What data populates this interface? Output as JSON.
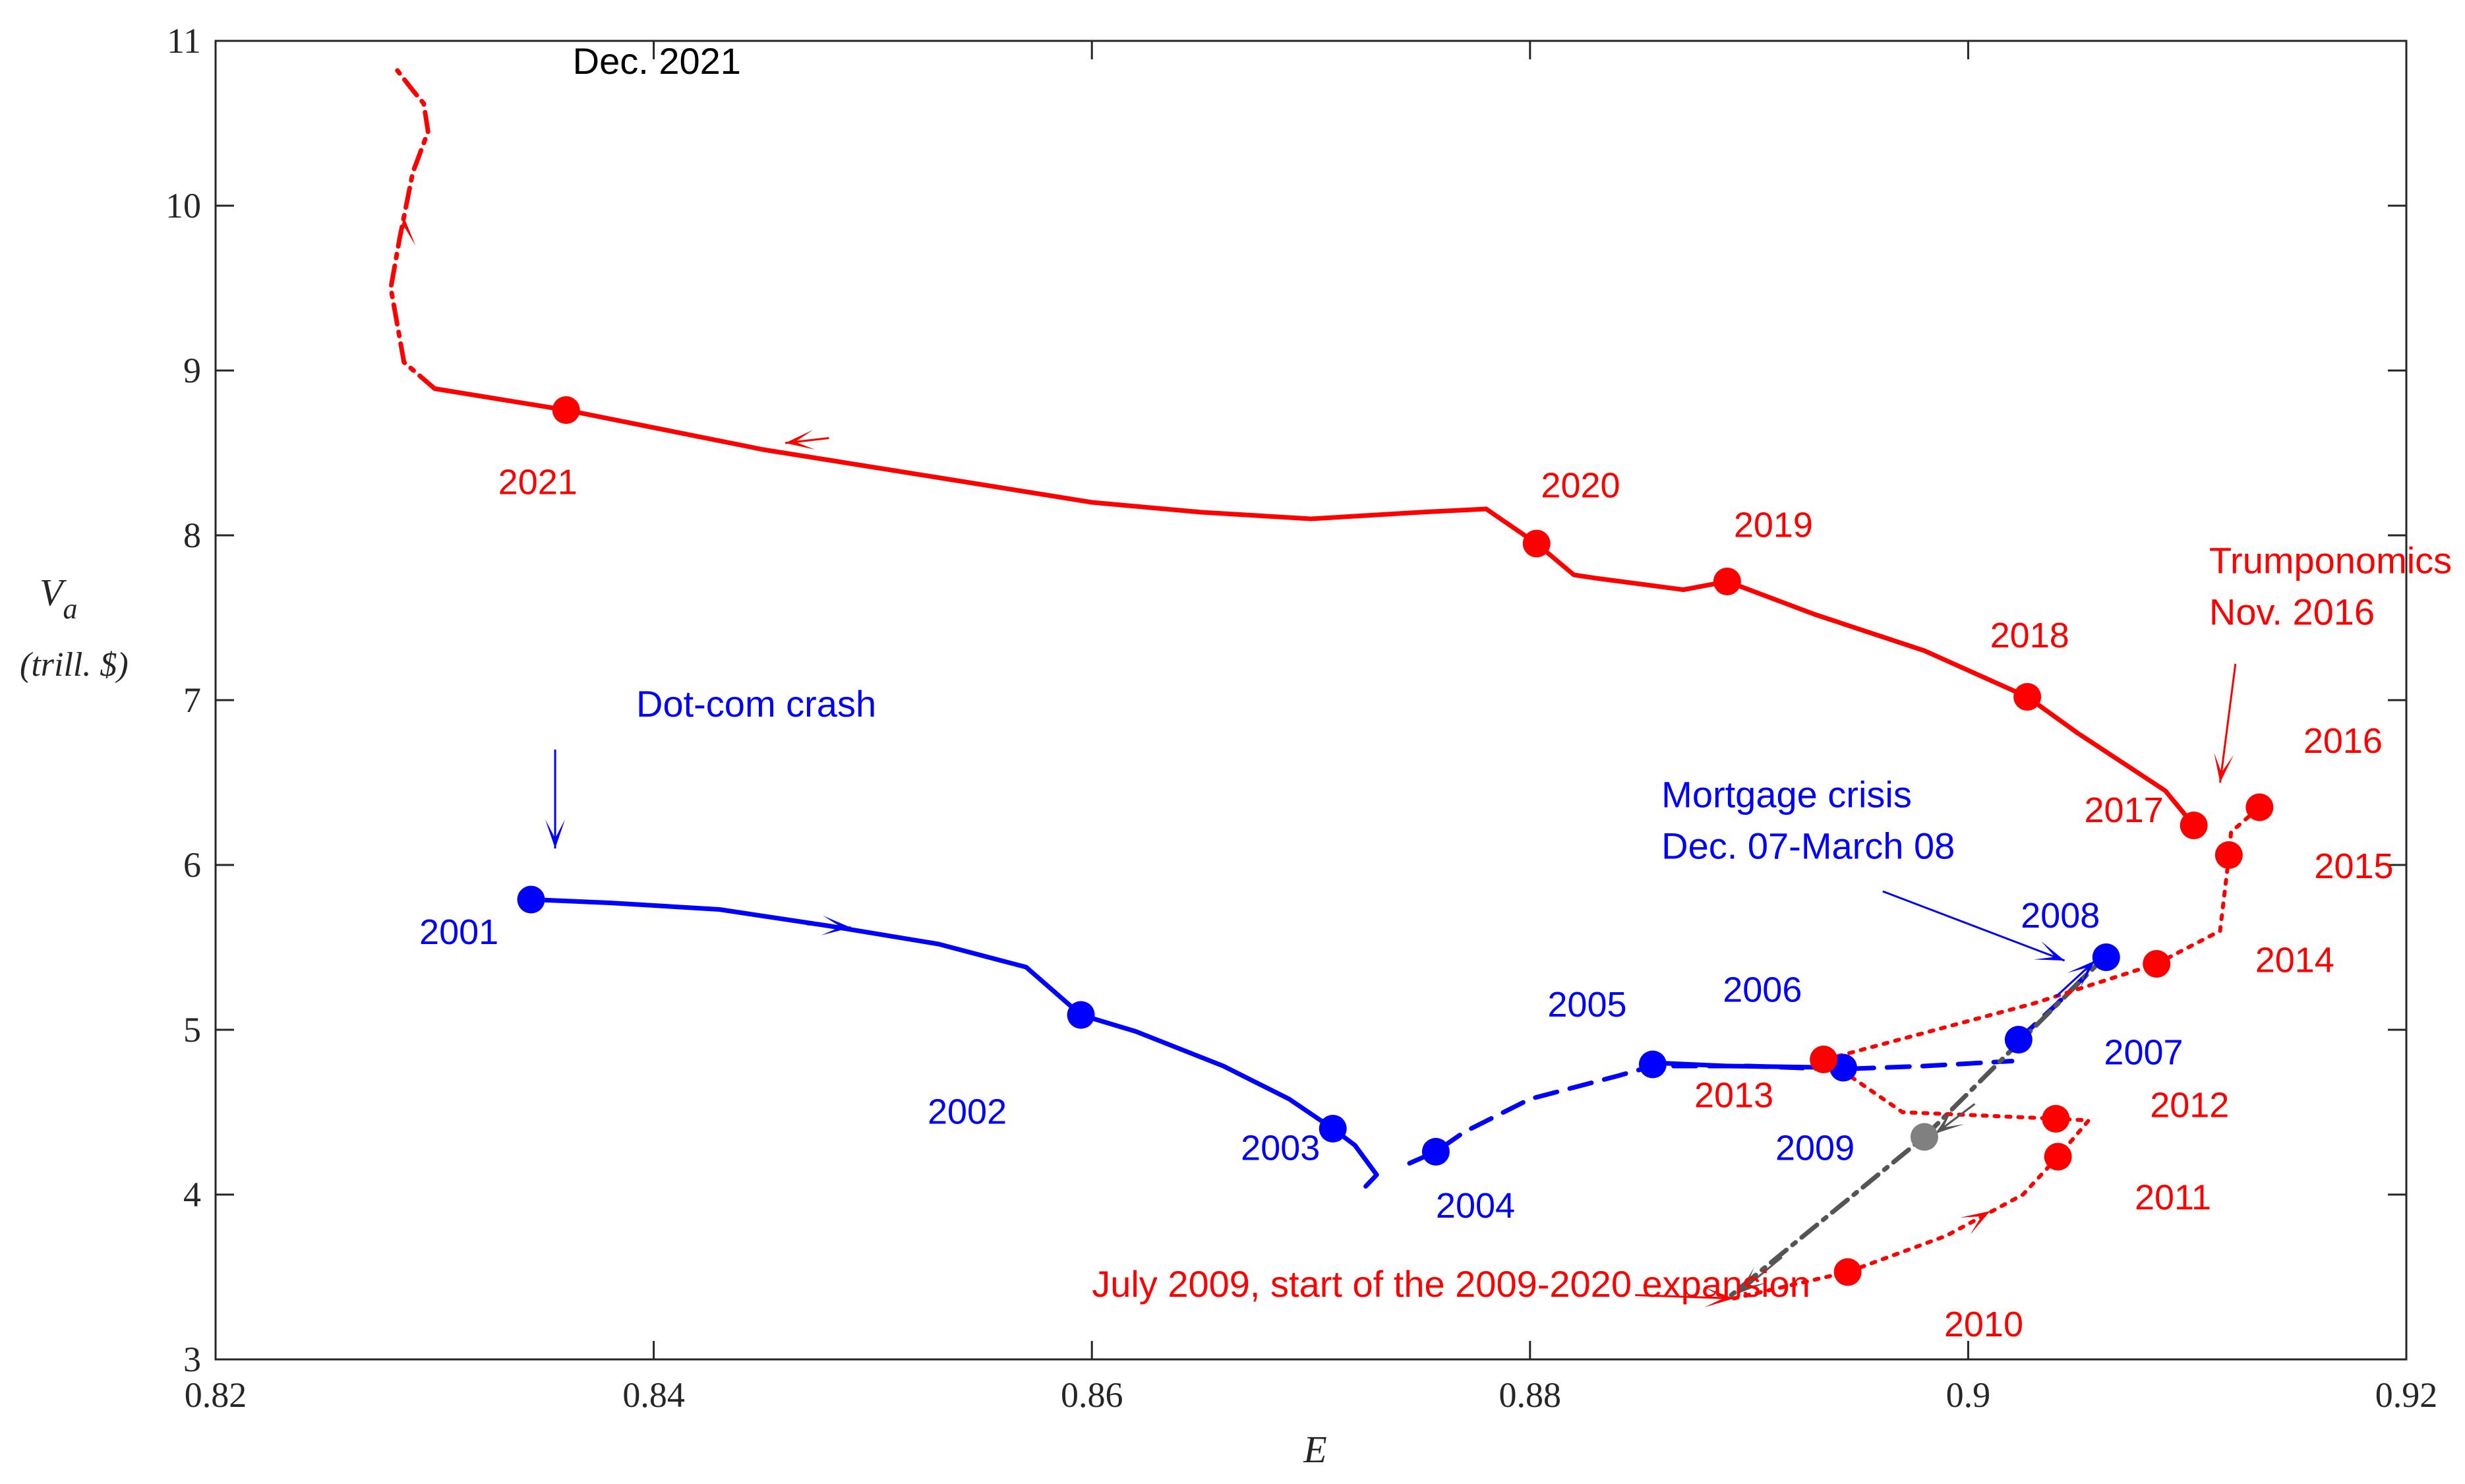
{
  "chart_data": {
    "type": "line",
    "xlabel": "E",
    "ylabel": {
      "main": "V",
      "sub": "a",
      "unit": "(trill. $)"
    },
    "xlim": [
      0.82,
      0.92
    ],
    "ylim": [
      3,
      11
    ],
    "x_ticks": [
      {
        "value": 0.82,
        "label": "0.82"
      },
      {
        "value": 0.84,
        "label": "0.84"
      },
      {
        "value": 0.86,
        "label": "0.86"
      },
      {
        "value": 0.88,
        "label": "0.88"
      },
      {
        "value": 0.9,
        "label": "0.9"
      },
      {
        "value": 0.92,
        "label": "0.92"
      }
    ],
    "y_ticks": [
      {
        "value": 3,
        "label": "3"
      },
      {
        "value": 4,
        "label": "4"
      },
      {
        "value": 5,
        "label": "5"
      },
      {
        "value": 6,
        "label": "6"
      },
      {
        "value": 7,
        "label": "7"
      },
      {
        "value": 8,
        "label": "8"
      },
      {
        "value": 9,
        "label": "9"
      },
      {
        "value": 10,
        "label": "10"
      },
      {
        "value": 11,
        "label": "11"
      }
    ],
    "grid": false,
    "colors": {
      "red": "#ff0000",
      "blue": "#0000ff",
      "gray": "#555555",
      "gray_point": "#808080",
      "axis": "#262626"
    },
    "series": [
      {
        "name": "blue-2001-2004",
        "color": "#0000ff",
        "style": "solid",
        "points": [
          [
            0.8345,
            5.79
          ],
          [
            0.838,
            5.77
          ],
          [
            0.843,
            5.73
          ],
          [
            0.848,
            5.63
          ],
          [
            0.853,
            5.52
          ],
          [
            0.857,
            5.38
          ],
          [
            0.8595,
            5.09
          ],
          [
            0.862,
            4.99
          ],
          [
            0.866,
            4.78
          ],
          [
            0.869,
            4.58
          ],
          [
            0.871,
            4.4
          ],
          [
            0.872,
            4.3
          ],
          [
            0.873,
            4.12
          ],
          [
            0.8725,
            4.05
          ]
        ]
      },
      {
        "name": "blue-2004-2007",
        "color": "#0000ff",
        "style": "dashed",
        "points": [
          [
            0.8745,
            4.19
          ],
          [
            0.8757,
            4.26
          ],
          [
            0.877,
            4.38
          ],
          [
            0.88,
            4.58
          ],
          [
            0.884,
            4.72
          ],
          [
            0.8856,
            4.78
          ],
          [
            0.89,
            4.78
          ],
          [
            0.894,
            4.76
          ],
          [
            0.898,
            4.78
          ],
          [
            0.902,
            4.81
          ]
        ]
      },
      {
        "name": "blue-2006-solid",
        "color": "#0000ff",
        "style": "solid",
        "points": [
          [
            0.8856,
            4.8
          ],
          [
            0.889,
            4.78
          ],
          [
            0.8943,
            4.77
          ]
        ]
      },
      {
        "name": "blue-2007-2008",
        "color": "#0000ff",
        "style": "dashed",
        "points": [
          [
            0.9023,
            4.94
          ],
          [
            0.904,
            5.15
          ],
          [
            0.9063,
            5.45
          ]
        ]
      },
      {
        "name": "gray-crash",
        "color": "#555555",
        "style": "dashdot",
        "points": [
          [
            0.9063,
            5.45
          ],
          [
            0.898,
            4.35
          ],
          [
            0.889,
            3.37
          ]
        ]
      },
      {
        "name": "red-2009-2016",
        "color": "#ff0000",
        "style": "dotted",
        "points": [
          [
            0.8893,
            3.37
          ],
          [
            0.8945,
            3.53
          ],
          [
            0.899,
            3.75
          ],
          [
            0.9025,
            4.0
          ],
          [
            0.9041,
            4.23
          ],
          [
            0.9055,
            4.45
          ],
          [
            0.9041,
            4.46
          ],
          [
            0.897,
            4.5
          ],
          [
            0.8935,
            4.82
          ],
          [
            0.903,
            5.16
          ],
          [
            0.9086,
            5.4
          ],
          [
            0.9115,
            5.6
          ],
          [
            0.9119,
            6.05
          ],
          [
            0.912,
            6.2
          ],
          [
            0.9133,
            6.35
          ]
        ]
      },
      {
        "name": "red-2017-2021",
        "color": "#ff0000",
        "style": "solid",
        "points": [
          [
            0.9103,
            6.24
          ],
          [
            0.909,
            6.45
          ],
          [
            0.905,
            6.8
          ],
          [
            0.9027,
            7.02
          ],
          [
            0.898,
            7.3
          ],
          [
            0.893,
            7.52
          ],
          [
            0.889,
            7.72
          ],
          [
            0.887,
            7.67
          ],
          [
            0.883,
            7.74
          ],
          [
            0.882,
            7.76
          ],
          [
            0.8803,
            7.95
          ],
          [
            0.878,
            8.16
          ],
          [
            0.875,
            8.14
          ],
          [
            0.87,
            8.1
          ],
          [
            0.865,
            8.14
          ],
          [
            0.86,
            8.2
          ],
          [
            0.853,
            8.35
          ],
          [
            0.845,
            8.52
          ],
          [
            0.836,
            8.76
          ],
          [
            0.83,
            8.89
          ]
        ]
      },
      {
        "name": "red-2021-dec",
        "color": "#ff0000",
        "style": "dashdot",
        "points": [
          [
            0.83,
            8.89
          ],
          [
            0.8286,
            9.05
          ],
          [
            0.828,
            9.5
          ],
          [
            0.8284,
            9.8
          ],
          [
            0.829,
            10.2
          ],
          [
            0.8297,
            10.45
          ],
          [
            0.8295,
            10.62
          ],
          [
            0.829,
            10.7
          ],
          [
            0.8283,
            10.82
          ]
        ]
      }
    ],
    "markers": [
      {
        "label": "2001",
        "x": 0.8344,
        "y": 5.79,
        "color": "#0000ff"
      },
      {
        "label": "2002",
        "x": 0.8595,
        "y": 5.09,
        "color": "#0000ff"
      },
      {
        "label": "2003",
        "x": 0.871,
        "y": 4.4,
        "color": "#0000ff"
      },
      {
        "label": "2004",
        "x": 0.8757,
        "y": 4.26,
        "color": "#0000ff"
      },
      {
        "label": "2005",
        "x": 0.8856,
        "y": 4.79,
        "color": "#0000ff"
      },
      {
        "label": "2006",
        "x": 0.8943,
        "y": 4.77,
        "color": "#0000ff"
      },
      {
        "label": "2007",
        "x": 0.9023,
        "y": 4.94,
        "color": "#0000ff"
      },
      {
        "label": "2008",
        "x": 0.9063,
        "y": 5.44,
        "color": "#0000ff"
      },
      {
        "label": "2009",
        "x": 0.898,
        "y": 4.35,
        "color": "#808080"
      },
      {
        "label": "2010",
        "x": 0.8945,
        "y": 3.53,
        "color": "#ff0000"
      },
      {
        "label": "2011",
        "x": 0.9041,
        "y": 4.23,
        "color": "#ff0000"
      },
      {
        "label": "2012",
        "x": 0.904,
        "y": 4.46,
        "color": "#ff0000"
      },
      {
        "label": "2013",
        "x": 0.8934,
        "y": 4.82,
        "color": "#ff0000"
      },
      {
        "label": "2014",
        "x": 0.9086,
        "y": 5.4,
        "color": "#ff0000"
      },
      {
        "label": "2015",
        "x": 0.9119,
        "y": 6.06,
        "color": "#ff0000"
      },
      {
        "label": "2016",
        "x": 0.9133,
        "y": 6.35,
        "color": "#ff0000"
      },
      {
        "label": "2017",
        "x": 0.9103,
        "y": 6.24,
        "color": "#ff0000"
      },
      {
        "label": "2018",
        "x": 0.9027,
        "y": 7.02,
        "color": "#ff0000"
      },
      {
        "label": "2019",
        "x": 0.889,
        "y": 7.72,
        "color": "#ff0000"
      },
      {
        "label": "2020",
        "x": 0.8803,
        "y": 7.95,
        "color": "#ff0000"
      },
      {
        "label": "2021",
        "x": 0.836,
        "y": 8.76,
        "color": "#ff0000"
      }
    ],
    "year_labels": [
      {
        "text": "2001",
        "x": 0.8293,
        "y": 5.52,
        "color": "#0000ff"
      },
      {
        "text": "2002",
        "x": 0.8525,
        "y": 4.43,
        "color": "#0000ff"
      },
      {
        "text": "2003",
        "x": 0.8668,
        "y": 4.21,
        "color": "#0000ff"
      },
      {
        "text": "2004",
        "x": 0.8757,
        "y": 3.86,
        "color": "#0000ff"
      },
      {
        "text": "2005",
        "x": 0.8808,
        "y": 5.08,
        "color": "#0000ff"
      },
      {
        "text": "2006",
        "x": 0.8888,
        "y": 5.17,
        "color": "#0000ff"
      },
      {
        "text": "2007",
        "x": 0.9062,
        "y": 4.79,
        "color": "#0000ff"
      },
      {
        "text": "2008",
        "x": 0.9024,
        "y": 5.62,
        "color": "#0000ff"
      },
      {
        "text": "2009",
        "x": 0.8912,
        "y": 4.21,
        "color": "#0000ff"
      },
      {
        "text": "2010",
        "x": 0.8989,
        "y": 3.14,
        "color": "#ff0000"
      },
      {
        "text": "2011",
        "x": 0.9076,
        "y": 3.91,
        "color": "#ff0000"
      },
      {
        "text": "2012",
        "x": 0.9083,
        "y": 4.47,
        "color": "#ff0000"
      },
      {
        "text": "2013",
        "x": 0.8875,
        "y": 4.53,
        "color": "#ff0000"
      },
      {
        "text": "2014",
        "x": 0.9131,
        "y": 5.35,
        "color": "#ff0000"
      },
      {
        "text": "2015",
        "x": 0.9158,
        "y": 5.92,
        "color": "#ff0000"
      },
      {
        "text": "2016",
        "x": 0.9153,
        "y": 6.68,
        "color": "#ff0000"
      },
      {
        "text": "2017",
        "x": 0.9053,
        "y": 6.26,
        "color": "#ff0000"
      },
      {
        "text": "2018",
        "x": 0.901,
        "y": 7.32,
        "color": "#ff0000"
      },
      {
        "text": "2019",
        "x": 0.8893,
        "y": 7.99,
        "color": "#ff0000"
      },
      {
        "text": "2020",
        "x": 0.8805,
        "y": 8.23,
        "color": "#ff0000"
      },
      {
        "text": "2021",
        "x": 0.8329,
        "y": 8.25,
        "color": "#ff0000"
      }
    ],
    "annotations": [
      {
        "name": "dotcom-label",
        "lines": [
          "Dot-com crash"
        ],
        "x": 0.8392,
        "y": 6.9,
        "color": "#0000ff"
      },
      {
        "name": "mortgage-label",
        "lines": [
          "Mortgage crisis",
          "Dec. 07-March 08"
        ],
        "x": 0.886,
        "y": 6.35,
        "color": "#0000ff"
      },
      {
        "name": "trump-label",
        "lines": [
          "Trumponomics",
          "Nov. 2016"
        ],
        "x": 0.911,
        "y": 7.77,
        "color": "#ff0000"
      },
      {
        "name": "expansion-label",
        "lines": [
          "July 2009, start of the 2009-2020 expansion"
        ],
        "x": 0.86,
        "y": 3.38,
        "color": "#ff0000"
      },
      {
        "name": "dec2021-label",
        "lines": [
          "Dec. 2021"
        ],
        "x": 0.8363,
        "y": 10.8,
        "color": "#000000"
      }
    ],
    "arrows": [
      {
        "name": "dotcom-arrow",
        "from": [
          0.8355,
          6.7
        ],
        "to": [
          0.8355,
          6.1
        ],
        "color": "#0000ff"
      },
      {
        "name": "mortgage-arrow",
        "from": [
          0.8961,
          5.84
        ],
        "to": [
          0.9044,
          5.42
        ],
        "color": "#0000ff"
      },
      {
        "name": "trump-arrow",
        "from": [
          0.9122,
          7.22
        ],
        "to": [
          0.9115,
          6.5
        ],
        "color": "#ff0000"
      },
      {
        "name": "expansion-arrow",
        "from": [
          0.8848,
          3.39
        ],
        "to": [
          0.8893,
          3.37
        ],
        "color": "#ff0000"
      },
      {
        "name": "arrow-blue-1",
        "from": [
          0.847,
          5.64
        ],
        "to": [
          0.849,
          5.62
        ],
        "color": "#0000ff"
      },
      {
        "name": "arrow-red-2021",
        "from": [
          0.848,
          8.59
        ],
        "to": [
          0.846,
          8.56
        ],
        "color": "#ff0000"
      },
      {
        "name": "arrow-red-dec",
        "from": [
          0.8287,
          9.7
        ],
        "to": [
          0.8286,
          9.93
        ],
        "color": "#ff0000"
      },
      {
        "name": "arrow-red-2010",
        "from": [
          0.8995,
          3.78
        ],
        "to": [
          0.901,
          3.9
        ],
        "color": "#ff0000"
      },
      {
        "name": "arrow-gray-1",
        "from": [
          0.9003,
          4.55
        ],
        "to": [
          0.8985,
          4.37
        ],
        "color": "#555555"
      },
      {
        "name": "arrow-gray-2",
        "from": [
          0.8915,
          3.62
        ],
        "to": [
          0.8895,
          3.4
        ],
        "color": "#555555"
      },
      {
        "name": "arrow-blue-2008",
        "from": [
          0.904,
          5.2
        ],
        "to": [
          0.9058,
          5.42
        ],
        "color": "#0000ff"
      }
    ]
  }
}
